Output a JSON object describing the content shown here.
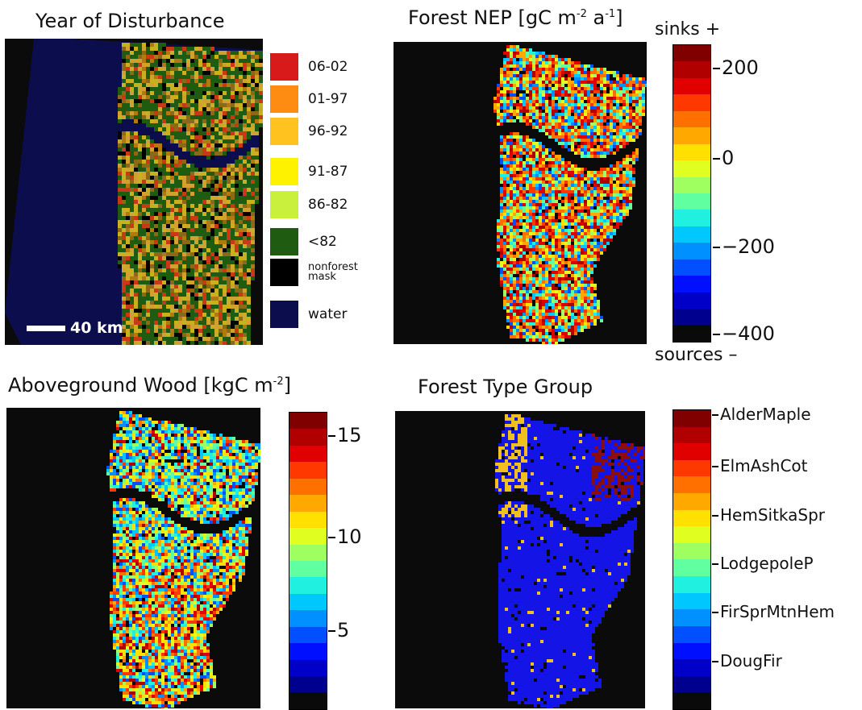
{
  "panels": {
    "disturbance": {
      "title": "Year of Disturbance",
      "scale_label": "40 km",
      "legend": [
        {
          "label": "06-02",
          "color": "#d81a1a"
        },
        {
          "label": "01-97",
          "color": "#ff8c12"
        },
        {
          "label": "96-92",
          "color": "#ffc21f"
        },
        {
          "label": "91-87",
          "color": "#fff200"
        },
        {
          "label": "86-82",
          "color": "#c8f03c"
        },
        {
          "label": "<82",
          "color": "#1f5c12"
        },
        {
          "label": "nonforest mask",
          "color": "#000000"
        },
        {
          "label": "water",
          "color": "#0c0d4c"
        }
      ]
    },
    "nep": {
      "title": "Forest NEP [gC m",
      "title_sup1": "-2",
      "title_mid": " a",
      "title_sup2": "-1",
      "title_end": "]",
      "top_label": "sinks +",
      "bottom_label": "sources –",
      "ticks": [
        "200",
        "0",
        "−200",
        "−400"
      ]
    },
    "wood": {
      "title": "Aboveground Wood [kgC m",
      "title_sup": "-2",
      "title_end": "]",
      "ticks": [
        "15",
        "10",
        "5"
      ]
    },
    "forest_type": {
      "title": "Forest Type Group",
      "labels": [
        "AlderMaple",
        "ElmAshCot",
        "HemSitkaSpr",
        "LodgepoleP",
        "FirSprMtnHem",
        "DougFir"
      ]
    }
  },
  "colors": {
    "jet": [
      "#0a0a0a",
      "#00008f",
      "#0000c8",
      "#0010ff",
      "#0050ff",
      "#0090ff",
      "#00c8ff",
      "#20f0e0",
      "#60ffa0",
      "#a0ff60",
      "#e0ff20",
      "#ffe000",
      "#ffa800",
      "#ff7000",
      "#ff3800",
      "#e00000",
      "#b00000",
      "#800000"
    ],
    "water": "#0c0d4c",
    "background": "#0b0b0b",
    "dougfir": "#1414e6",
    "yellow_group": "#f0c020",
    "alder": "#8a0e0e"
  }
}
